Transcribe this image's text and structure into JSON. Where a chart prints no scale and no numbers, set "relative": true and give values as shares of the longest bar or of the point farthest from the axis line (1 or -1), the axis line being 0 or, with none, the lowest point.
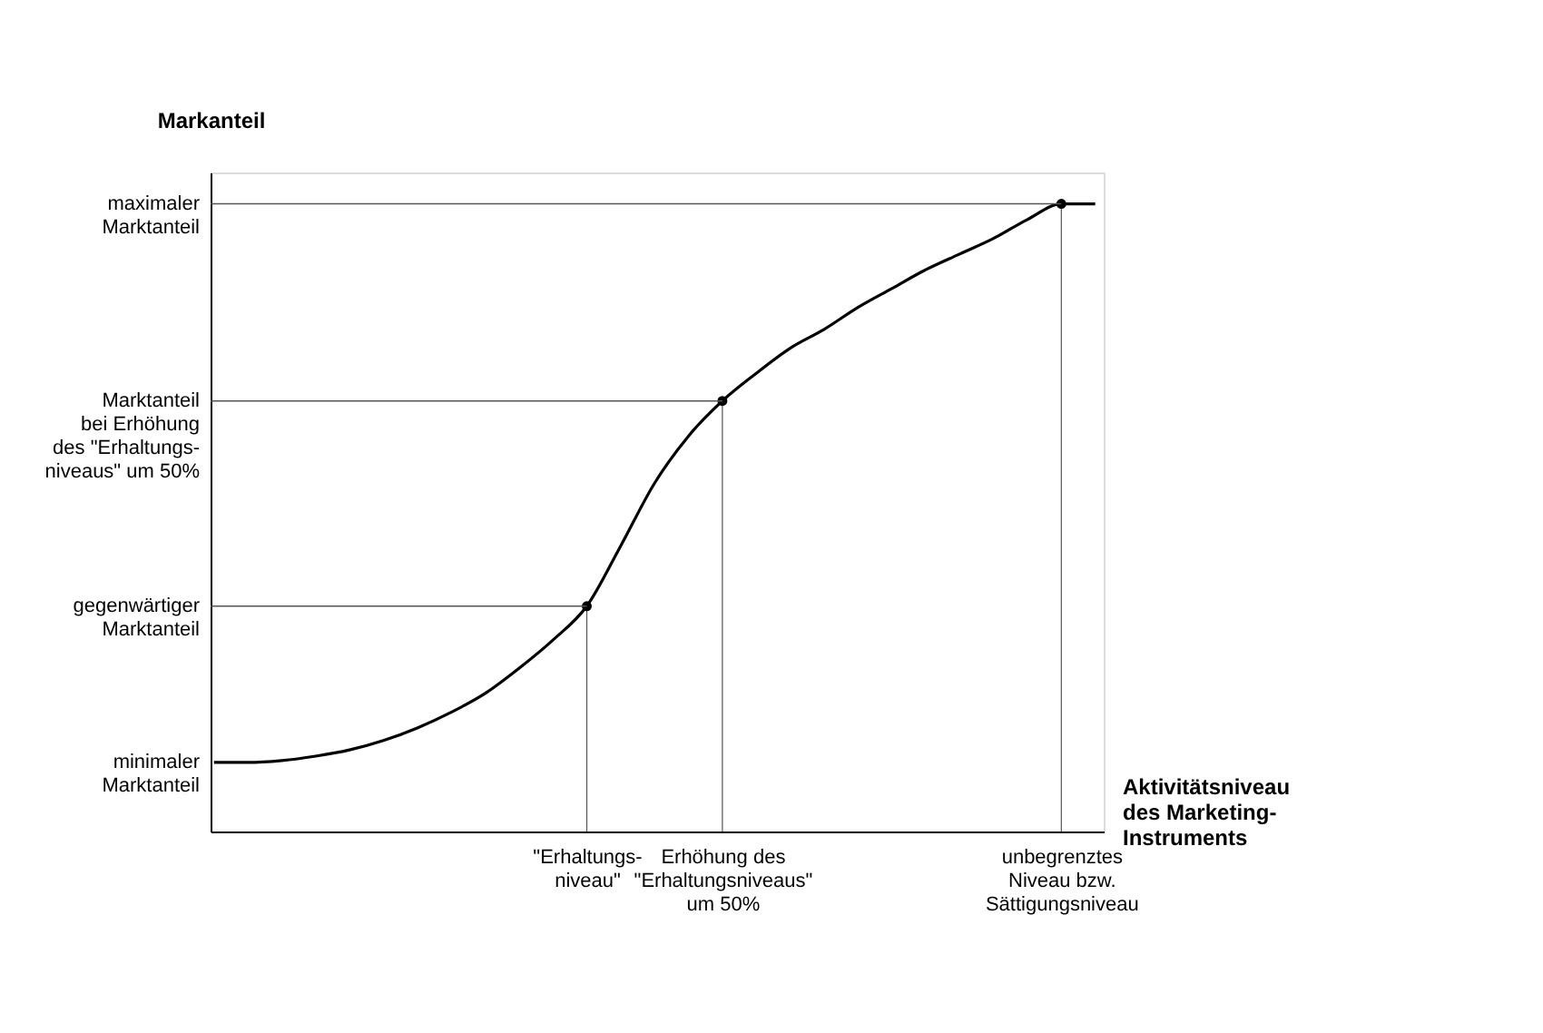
{
  "chart_data": {
    "type": "line",
    "relative": true,
    "ylabel": "Markanteil",
    "xlabel": "Aktivitätsniveau\ndes Marketing-\nInstruments",
    "categories": [
      null,
      null,
      null,
      null,
      null,
      null,
      null,
      null,
      null,
      null,
      null,
      "\"Erhaltungs-\nniveau\"",
      null,
      null,
      null,
      "Erhöhung des\n\"Erhaltungsniveaus\"\num 50%",
      null,
      null,
      null,
      null,
      null,
      null,
      null,
      null,
      null,
      "unbegrenztes\nNiveau bzw.\nSättigungsniveau",
      null
    ],
    "annotations": [
      "minimaler\nMarktanteil"
    ],
    "ref_lines": [
      {
        "axis": "y",
        "value": 0.359,
        "label": "gegenwärtiger\nMarktanteil"
      },
      {
        "axis": "y",
        "value": 0.686,
        "label": "Marktanteil\nbei Erhöhung\ndes \"Erhaltungs-\nniveaus\" um 50%"
      },
      {
        "axis": "y",
        "value": 1,
        "label": "maximaler\nMarktanteil"
      }
    ],
    "series": [
      {
        "color": "#000000",
        "values": [
          0.11,
          0.11,
          0.113,
          0.12,
          0.13,
          0.145,
          0.165,
          0.19,
          0.22,
          0.26,
          0.305,
          0.359,
          0.455,
          0.555,
          0.63,
          0.686,
          0.73,
          0.77,
          0.8,
          0.835,
          0.865,
          0.895,
          0.92,
          0.945,
          0.975,
          1,
          1
        ]
      },
      {
        "type": "scatter",
        "color": "#000000",
        "marker": "circle",
        "values": [
          null,
          null,
          null,
          null,
          null,
          null,
          null,
          null,
          null,
          null,
          null,
          0.359,
          null,
          null,
          null,
          0.686,
          null,
          null,
          null,
          null,
          null,
          null,
          null,
          null,
          null,
          1,
          null
        ]
      }
    ]
  }
}
